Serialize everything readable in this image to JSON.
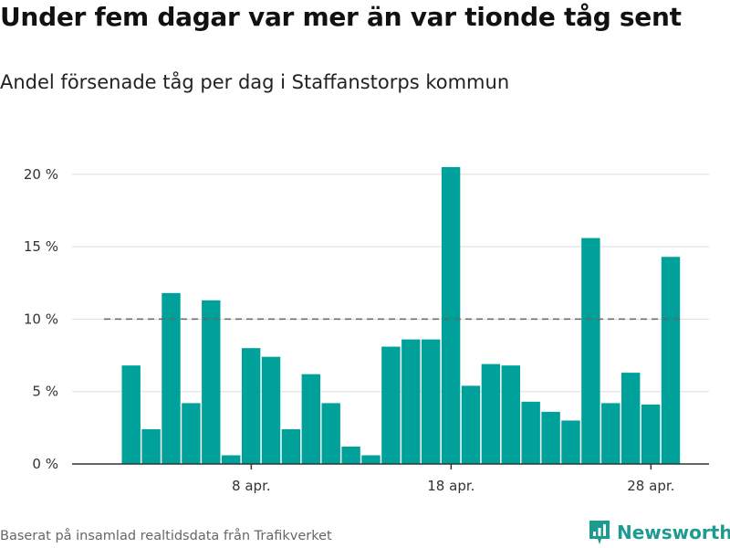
{
  "header": {
    "title": "Under fem dagar var mer än var tionde tåg sent",
    "subtitle": "Andel försenade tåg per dag i Staffanstorps kommun"
  },
  "footer": {
    "source": "Baserat på insamlad realtidsdata från Trafikverket",
    "brand": "Newsworthy",
    "brand_color": "#1e9b8f"
  },
  "chart_data": {
    "type": "bar",
    "title": "Under fem dagar var mer än var tionde tåg sent",
    "subtitle": "Andel försenade tåg per dag i Staffanstorps kommun",
    "xlabel": "",
    "ylabel": "",
    "categories": [
      "2 apr.",
      "3 apr.",
      "4 apr.",
      "5 apr.",
      "6 apr.",
      "7 apr.",
      "8 apr.",
      "9 apr.",
      "10 apr.",
      "11 apr.",
      "12 apr.",
      "13 apr.",
      "14 apr.",
      "15 apr.",
      "16 apr.",
      "17 apr.",
      "18 apr.",
      "19 apr.",
      "20 apr.",
      "21 apr.",
      "22 apr.",
      "23 apr.",
      "24 apr.",
      "25 apr.",
      "26 apr.",
      "27 apr.",
      "28 apr.",
      "29 apr."
    ],
    "values": [
      6.8,
      2.4,
      11.8,
      4.2,
      11.3,
      0.6,
      8.0,
      7.4,
      2.4,
      6.2,
      4.2,
      1.2,
      0.6,
      8.1,
      8.6,
      8.6,
      20.5,
      5.4,
      6.9,
      6.8,
      4.3,
      3.6,
      3.0,
      15.6,
      4.2,
      6.3,
      4.1,
      14.3
    ],
    "ylim": [
      0,
      21
    ],
    "y_ticks": [
      0,
      5,
      10,
      15,
      20
    ],
    "y_tick_labels": [
      "0 %",
      "5 %",
      "10 %",
      "15 %",
      "20 %"
    ],
    "x_tick_labels": [
      {
        "category": "8 apr.",
        "label": "8 apr."
      },
      {
        "category": "18 apr.",
        "label": "18 apr."
      },
      {
        "category": "28 apr.",
        "label": "28 apr."
      }
    ],
    "reference_line": {
      "value": 10,
      "style": "dashed",
      "color": "#666666"
    },
    "bar_color": "#00a19a",
    "grid": true,
    "grid_color": "#dddddd",
    "legend": "none"
  }
}
